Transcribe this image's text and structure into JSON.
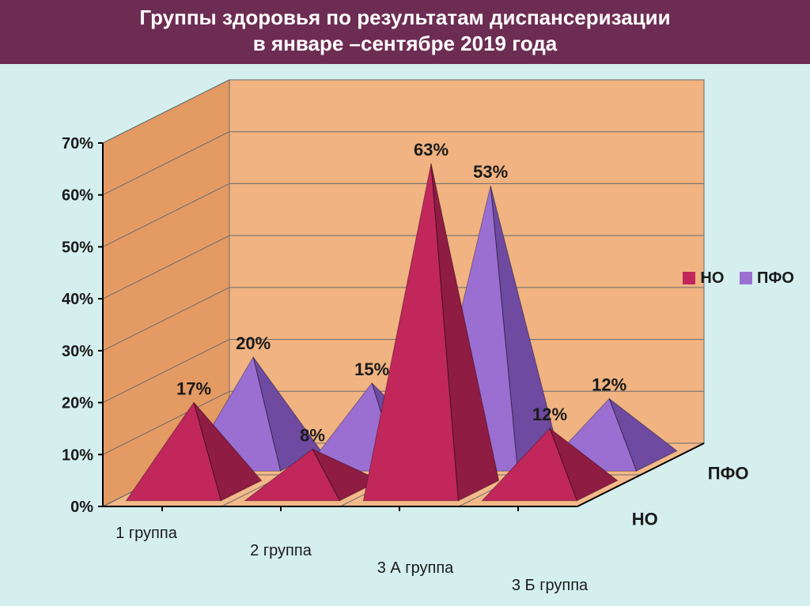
{
  "title_line1": "Группы здоровья по результатам диспансеризации",
  "title_line2": "в январе –сентябре 2019 года",
  "chart": {
    "type": "3d_pyramid_bar",
    "background": "#d5efef",
    "floor_top": "#f4b989",
    "floor_front": "#e8a06f",
    "wall_back": "#f0b381",
    "wall_side": "#e49a63",
    "grid_color": "#6b6b6b",
    "ylabel_suffix": "%",
    "ylim": [
      0,
      70
    ],
    "ytick_step": 10,
    "yticks": [
      "0%",
      "10%",
      "20%",
      "30%",
      "40%",
      "50%",
      "60%",
      "70%"
    ],
    "categories": [
      "1 группа",
      "2 группа",
      "3 А группа",
      "3 Б группа"
    ],
    "series": [
      {
        "name": "НО",
        "color": "#c1275b",
        "side": "#8f1c43",
        "highlight": "#e36a94",
        "values": [
          17,
          8,
          63,
          12
        ]
      },
      {
        "name": "ПФО",
        "color": "#9b6fd1",
        "side": "#6e4aa0",
        "highlight": "#c7a9ea",
        "values": [
          20,
          15,
          53,
          12
        ]
      }
    ],
    "value_labels": [
      [
        "17%",
        "8%",
        "63%",
        "12%"
      ],
      [
        "20%",
        "15%",
        "53%",
        "12%"
      ]
    ],
    "depth_labels": [
      "НО",
      "ПФО"
    ],
    "legend": {
      "items": [
        {
          "label": "НО",
          "color": "#c1275b"
        },
        {
          "label": "ПФО",
          "color": "#9b6fd1"
        }
      ]
    }
  }
}
